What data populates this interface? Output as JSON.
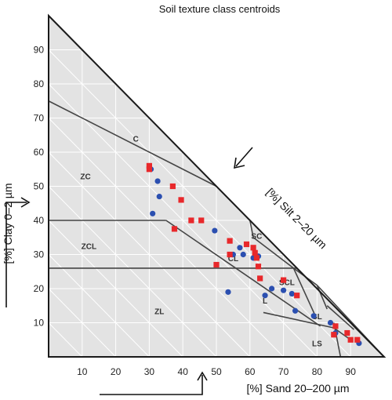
{
  "chart_data": {
    "type": "scatter",
    "title": "Soil texture class centroids",
    "xlabel": "[%] Sand 20–200 µm",
    "ylabel": "[%] Clay 0–2 µm",
    "silt_label": "[%] Silt 2–20 µm",
    "x_ticks": [
      "10",
      "20",
      "30",
      "40",
      "50",
      "60",
      "70",
      "80",
      "90"
    ],
    "y_ticks": [
      "10",
      "20",
      "30",
      "40",
      "50",
      "60",
      "70",
      "80",
      "90"
    ],
    "xlim": [
      0,
      100
    ],
    "ylim": [
      0,
      100
    ],
    "class_labels": [
      {
        "text": "C",
        "sand": 26,
        "clay": 64
      },
      {
        "text": "ZC",
        "sand": 11,
        "clay": 53
      },
      {
        "text": "ZCL",
        "sand": 12,
        "clay": 32.5
      },
      {
        "text": "ZL",
        "sand": 33,
        "clay": 13.5
      },
      {
        "text": "SC",
        "sand": 62,
        "clay": 35.5
      },
      {
        "text": "CL",
        "sand": 55,
        "clay": 29
      },
      {
        "text": "SCL",
        "sand": 71,
        "clay": 22
      },
      {
        "text": "L",
        "sand": 64.5,
        "clay": 16.5
      },
      {
        "text": "SL",
        "sand": 80,
        "clay": 12
      },
      {
        "text": "LS",
        "sand": 80,
        "clay": 4
      }
    ],
    "series": [
      {
        "marker": "circle",
        "color": "#2b4fb0",
        "points": [
          [
            30.5,
            55
          ],
          [
            32.5,
            51.5
          ],
          [
            33,
            47
          ],
          [
            31,
            42
          ],
          [
            49.5,
            37
          ],
          [
            55,
            30
          ],
          [
            57,
            32
          ],
          [
            61,
            29
          ],
          [
            58,
            30
          ],
          [
            62.5,
            29.5
          ],
          [
            53.5,
            19
          ],
          [
            64.5,
            18
          ],
          [
            66.5,
            20
          ],
          [
            70,
            19.5
          ],
          [
            72.5,
            18.5
          ],
          [
            73.5,
            13.5
          ],
          [
            79,
            12
          ],
          [
            84,
            10
          ],
          [
            85.5,
            7
          ],
          [
            92.5,
            4
          ]
        ]
      },
      {
        "marker": "square",
        "color": "#e8282b",
        "points": [
          [
            30,
            56
          ],
          [
            30,
            55
          ],
          [
            37,
            50
          ],
          [
            39.5,
            46
          ],
          [
            37.5,
            37.5
          ],
          [
            42.5,
            40
          ],
          [
            45.5,
            40
          ],
          [
            54,
            34
          ],
          [
            54,
            30
          ],
          [
            59,
            33
          ],
          [
            61,
            32
          ],
          [
            61.5,
            30.5
          ],
          [
            62,
            29
          ],
          [
            50,
            27
          ],
          [
            62.5,
            26.5
          ],
          [
            63,
            23
          ],
          [
            70,
            22.5
          ],
          [
            74,
            18
          ],
          [
            85.5,
            9
          ],
          [
            85,
            6.5
          ],
          [
            89,
            7
          ],
          [
            90,
            5
          ],
          [
            92,
            5
          ]
        ]
      }
    ]
  }
}
